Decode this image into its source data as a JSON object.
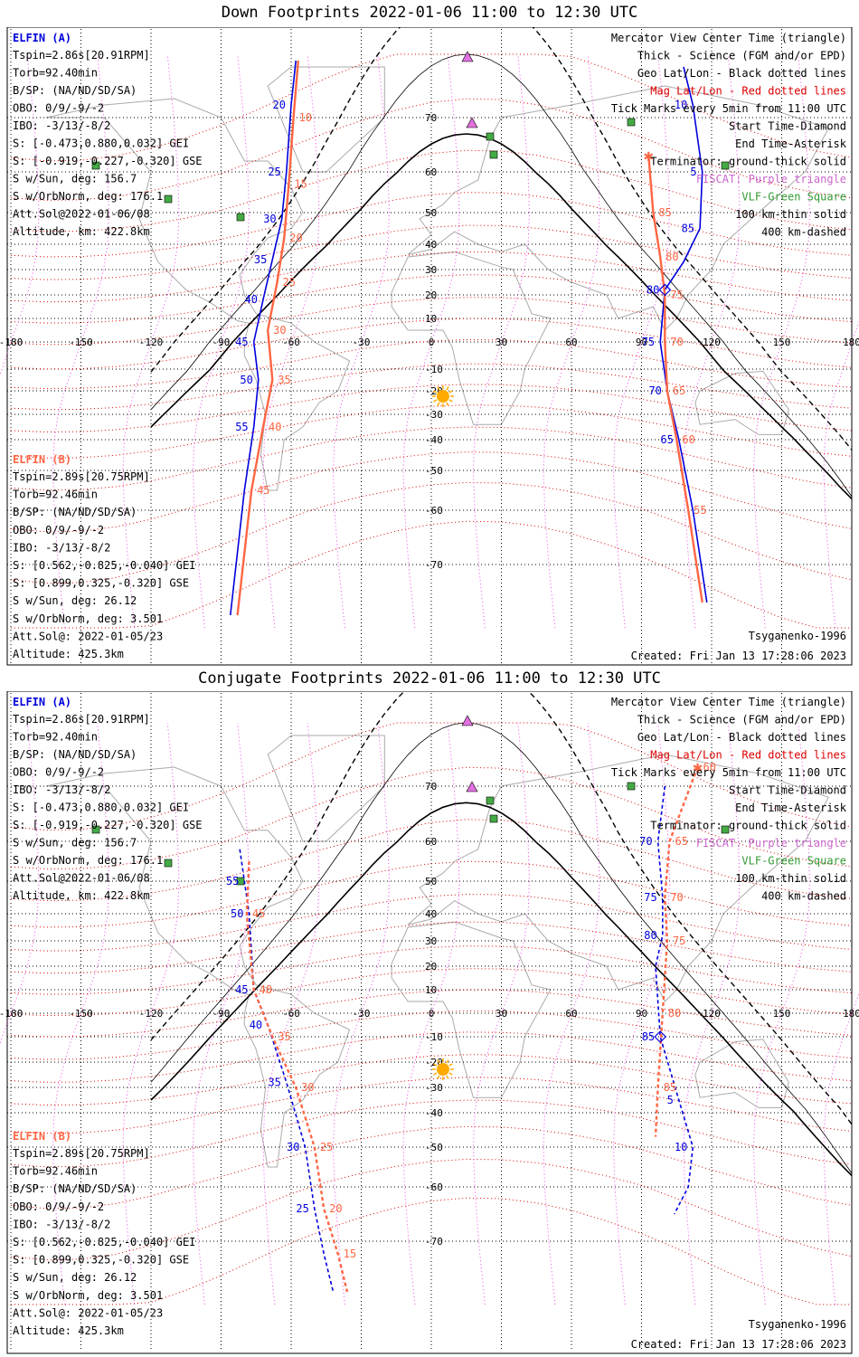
{
  "colors": {
    "a": "#0000dd",
    "b": "#ff6644",
    "mag": "#dd0000",
    "fiscat": "#cc66cc",
    "vlf": "#339933",
    "sun": "#ffaa00"
  },
  "panels": [
    {
      "title": "Down Footprints 2022-01-06 11:00 to 12:30 UTC",
      "elfin_a": {
        "name": "ELFIN (A)",
        "lines": [
          "Tspin=2.86s[20.91RPM]",
          "Torb=92.40min",
          "B/SP: (NA/ND/SD/SA)",
          "OBO: 0/9/-9/-2",
          "IBO: -3/13/-8/2",
          "S: [-0.473,0.880,0.032] GEI",
          "S: [-0.919,-0.227,-0.320] GSE",
          "S w/Sun, deg: 156.7",
          "S w/OrbNorm, deg: 176.1",
          "Att.Sol@2022-01-06/08",
          "Altitude, km: 422.8km"
        ]
      },
      "elfin_b": {
        "name": "ELFIN (B)",
        "lines": [
          "Tspin=2.89s[20.75RPM]",
          "Torb=92.46min",
          "B/SP: (NA/ND/SD/SA)",
          "OBO: 0/9/-9/-2",
          "IBO: -3/13/-8/2",
          "S: [0.562,-0.825,-0.040] GEI",
          "S: [0.899,0.325,-0.320] GSE",
          "S w/Sun, deg: 26.12",
          "S w/OrbNorm, deg: 3.501",
          "Att.Sol@: 2022-01-05/23",
          "Altitude: 425.3km"
        ]
      },
      "legend": [
        "Mercator View Center Time (triangle)",
        "Thick - Science (FGM and/or EPD)",
        "Geo Lat/Lon - Black dotted lines",
        "Mag Lat/Lon - Red dotted lines",
        "Tick Marks every 5min from 11:00 UTC",
        "Start Time-Diamond",
        "End Time-Asterisk",
        "Terminator: ground-thick solid",
        "FISCAT: Purple triangle",
        "VLF-Green Square",
        "100 km-thin solid",
        "400 km-dashed"
      ],
      "model": "Tsyganenko-1996",
      "created": "Created: Fri Jan 13 17:28:06 2023",
      "lon_ticks": [
        "-180",
        "-150",
        "-120",
        "-90",
        "-60",
        "-30",
        "0",
        "30",
        "60",
        "90",
        "120",
        "150",
        "180"
      ],
      "lat_ticks": [
        "70",
        "60",
        "50",
        "40",
        "30",
        "20",
        "10",
        "-10",
        "-20",
        "-30",
        "-40",
        "-50",
        "-60",
        "-70"
      ],
      "a_track_labels": [
        "20",
        "25",
        "30",
        "35",
        "40",
        "45",
        "50",
        "55",
        "10",
        "5",
        "85",
        "80",
        "75",
        "70",
        "65"
      ],
      "b_track_labels": [
        "10",
        "15",
        "20",
        "25",
        "30",
        "35",
        "40",
        "45",
        "85",
        "80",
        "75",
        "70",
        "65",
        "60",
        "55"
      ]
    },
    {
      "title": "Conjugate Footprints 2022-01-06 11:00 to 12:30 UTC",
      "elfin_a": {
        "name": "ELFIN (A)",
        "lines": [
          "Tspin=2.86s[20.91RPM]",
          "Torb=92.40min",
          "B/SP: (NA/ND/SD/SA)",
          "OBO: 0/9/-9/-2",
          "IBO: -3/13/-8/2",
          "S: [-0.473,0.880,0.032] GEI",
          "S: [-0.919,-0.227,-0.320] GSE",
          "S w/Sun, deg: 156.7",
          "S w/OrbNorm, deg: 176.1",
          "Att.Sol@2022-01-06/08",
          "Altitude, km: 422.8km"
        ]
      },
      "elfin_b": {
        "name": "ELFIN (B)",
        "lines": [
          "Tspin=2.89s[20.75RPM]",
          "Torb=92.46min",
          "B/SP: (NA/ND/SD/SA)",
          "OBO: 0/9/-9/-2",
          "IBO: -3/13/-8/2",
          "S: [0.562,-0.825,-0.040] GEI",
          "S: [0.899,0.325,-0.320] GSE",
          "S w/Sun, deg: 26.12",
          "S w/OrbNorm, deg: 3.501",
          "Att.Sol@: 2022-01-05/23",
          "Altitude: 425.3km"
        ]
      },
      "legend": [
        "Mercator View Center Time (triangle)",
        "Thick - Science (FGM and/or EPD)",
        "Geo Lat/Lon - Black dotted lines",
        "Mag Lat/Lon - Red dotted lines",
        "Tick Marks every 5min from 11:00 UTC",
        "Start Time-Diamond",
        "End Time-Asterisk",
        "Terminator: ground-thick solid",
        "FISCAT: Purple triangle",
        "VLF-Green Square",
        "100 km-thin solid",
        "400 km-dashed"
      ],
      "model": "Tsyganenko-1996",
      "created": "Created: Fri Jan 13 17:28:06 2023",
      "lon_ticks": [
        "-180",
        "-150",
        "-120",
        "-90",
        "-60",
        "-30",
        "0",
        "30",
        "60",
        "90",
        "120",
        "150",
        "180"
      ],
      "lat_ticks": [
        "70",
        "60",
        "50",
        "40",
        "30",
        "20",
        "10",
        "-10",
        "-20",
        "-30",
        "-40",
        "-50",
        "-60",
        "-70"
      ],
      "a_track_labels": [
        "55",
        "50",
        "45",
        "40",
        "35",
        "30",
        "25",
        "70",
        "75",
        "80",
        "85",
        "5",
        "10"
      ],
      "b_track_labels": [
        "45",
        "40",
        "35",
        "30",
        "25",
        "20",
        "15",
        "60",
        "65",
        "70",
        "75",
        "80",
        "85"
      ]
    }
  ],
  "chart_data": [
    {
      "type": "line",
      "title": "Down Footprints 2022-01-06 11:00 to 12:30 UTC",
      "xlabel": "",
      "ylabel": "",
      "xlim": [
        -180,
        180
      ],
      "ylim": [
        -78,
        78
      ],
      "grid": true,
      "series": [
        {
          "name": "ELFIN (A)",
          "lon": [
            -58,
            -60,
            -62,
            -64,
            -68,
            -72,
            -76,
            -74,
            -76,
            -80,
            -86
          ],
          "lat": [
            79,
            72,
            60,
            48,
            34,
            18,
            0,
            -15,
            -35,
            -55,
            -78
          ]
        },
        {
          "name": "ELFIN (B)",
          "lon": [
            -57,
            -59,
            -61,
            -63,
            -66,
            -70,
            -68,
            -72,
            -77,
            -83
          ],
          "lat": [
            79,
            70,
            57,
            42,
            25,
            5,
            -15,
            -35,
            -55,
            -78
          ]
        },
        {
          "name": "ELFIN (A)",
          "lon": [
            108,
            112,
            116,
            115,
            108,
            100,
            98,
            101,
            106,
            112,
            118
          ],
          "lat": [
            78,
            72,
            60,
            45,
            33,
            22,
            0,
            -20,
            -40,
            -60,
            -76
          ]
        },
        {
          "name": "ELFIN (B)",
          "lon": [
            93,
            95,
            98,
            100,
            100,
            101,
            105,
            110,
            116
          ],
          "lat": [
            63,
            50,
            35,
            20,
            0,
            -20,
            -40,
            -60,
            -76
          ]
        }
      ]
    },
    {
      "type": "line",
      "title": "Conjugate Footprints 2022-01-06 11:00 to 12:30 UTC",
      "xlabel": "",
      "ylabel": "",
      "xlim": [
        -180,
        180
      ],
      "ylim": [
        -78,
        78
      ],
      "grid": true,
      "series": [
        {
          "name": "ELFIN (A)",
          "lon": [
            -82,
            -80,
            -78,
            -76,
            -70,
            -62,
            -54,
            -50,
            -46,
            -42
          ],
          "lat": [
            58,
            50,
            40,
            10,
            -5,
            -28,
            -50,
            -64,
            -72,
            -78
          ]
        },
        {
          "name": "ELFIN (B)",
          "lon": [
            -78,
            -79,
            -76,
            -68,
            -58,
            -50,
            -46,
            -40,
            -36
          ],
          "lat": [
            55,
            40,
            10,
            -10,
            -30,
            -50,
            -64,
            -72,
            -78
          ]
        },
        {
          "name": "ELFIN (A)",
          "lon": [
            100,
            97,
            99,
            99,
            96,
            98,
            106,
            112,
            110,
            104
          ],
          "lat": [
            70,
            60,
            45,
            32,
            20,
            -10,
            -35,
            -50,
            -60,
            -65
          ]
        },
        {
          "name": "ELFIN (B)",
          "lon": [
            114,
            102,
            100,
            101,
            99,
            97,
            96
          ],
          "lat": [
            73,
            60,
            45,
            30,
            0,
            -30,
            -47
          ]
        }
      ]
    }
  ]
}
